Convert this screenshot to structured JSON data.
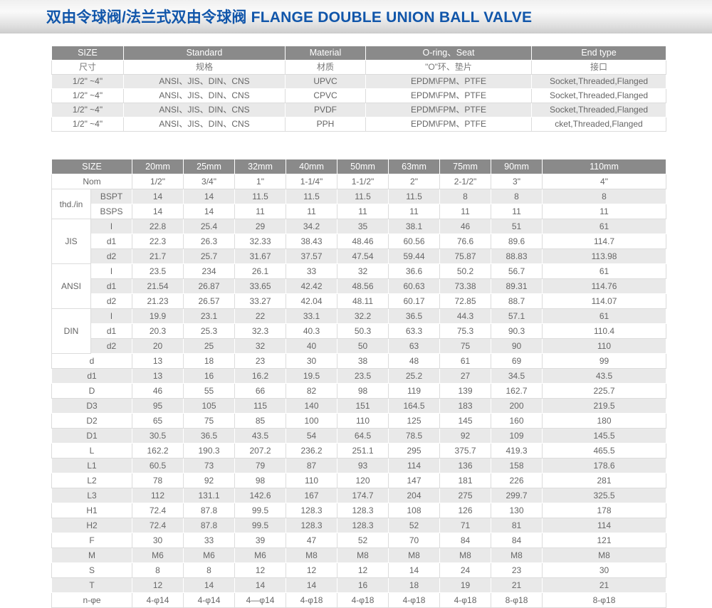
{
  "page": {
    "title": "双由令球阀/法兰式双由令球阀 FLANGE DOUBLE UNION BALL VALVE"
  },
  "spec_table": {
    "headers_en": [
      "SIZE",
      "Standard",
      "Material",
      "O-ring、Seat",
      "End type"
    ],
    "headers_zh": [
      "尺寸",
      "规格",
      "材质",
      "\"O\"环、垫片",
      "接口"
    ],
    "rows": [
      [
        "1/2\" ~4\"",
        "ANSI、JIS、DIN、CNS",
        "UPVC",
        "EPDM\\FPM、PTFE",
        "Socket,Threaded,Flanged"
      ],
      [
        "1/2\" ~4\"",
        "ANSI、JIS、DIN、CNS",
        "CPVC",
        "EPDM\\FPM、PTFE",
        "Socket,Threaded,Flanged"
      ],
      [
        "1/2\" ~4\"",
        "ANSI、JIS、DIN、CNS",
        "PVDF",
        "EPDM\\FPM、PTFE",
        "Socket,Threaded,Flanged"
      ],
      [
        "1/2\" ~4\"",
        "ANSI、JIS、DIN、CNS",
        "PPH",
        "EPDM\\FPM、PTFE",
        "cket,Threaded,Flanged"
      ]
    ]
  },
  "dim_table": {
    "size_header": "SIZE",
    "columns": [
      "20mm",
      "25mm",
      "32mm",
      "40mm",
      "50mm",
      "63mm",
      "75mm",
      "90mm",
      "110mm"
    ],
    "rows": [
      {
        "group": "",
        "label": "Nom",
        "values": [
          "1/2\"",
          "3/4\"",
          "1\"",
          "1-1/4\"",
          "1-1/2\"",
          "2\"",
          "2-1/2\"",
          "3\"",
          "4\""
        ]
      },
      {
        "group": "thd./in",
        "label": "BSPT",
        "values": [
          "14",
          "14",
          "11.5",
          "11.5",
          "11.5",
          "11.5",
          "8",
          "8",
          "8"
        ]
      },
      {
        "group": "thd./in",
        "label": "BSPS",
        "values": [
          "14",
          "14",
          "11",
          "11",
          "11",
          "11",
          "11",
          "11",
          "11"
        ]
      },
      {
        "group": "JIS",
        "label": "l",
        "values": [
          "22.8",
          "25.4",
          "29",
          "34.2",
          "35",
          "38.1",
          "46",
          "51",
          "61"
        ]
      },
      {
        "group": "JIS",
        "label": "d1",
        "values": [
          "22.3",
          "26.3",
          "32.33",
          "38.43",
          "48.46",
          "60.56",
          "76.6",
          "89.6",
          "114.7"
        ]
      },
      {
        "group": "JIS",
        "label": "d2",
        "values": [
          "21.7",
          "25.7",
          "31.67",
          "37.57",
          "47.54",
          "59.44",
          "75.87",
          "88.83",
          "113.98"
        ]
      },
      {
        "group": "ANSI",
        "label": "l",
        "values": [
          "23.5",
          "234",
          "26.1",
          "33",
          "32",
          "36.6",
          "50.2",
          "56.7",
          "61"
        ]
      },
      {
        "group": "ANSI",
        "label": "d1",
        "values": [
          "21.54",
          "26.87",
          "33.65",
          "42.42",
          "48.56",
          "60.63",
          "73.38",
          "89.31",
          "114.76"
        ]
      },
      {
        "group": "ANSI",
        "label": "d2",
        "values": [
          "21.23",
          "26.57",
          "33.27",
          "42.04",
          "48.11",
          "60.17",
          "72.85",
          "88.7",
          "114.07"
        ]
      },
      {
        "group": "DIN",
        "label": "l",
        "values": [
          "19.9",
          "23.1",
          "22",
          "33.1",
          "32.2",
          "36.5",
          "44.3",
          "57.1",
          "61"
        ]
      },
      {
        "group": "DIN",
        "label": "d1",
        "values": [
          "20.3",
          "25.3",
          "32.3",
          "40.3",
          "50.3",
          "63.3",
          "75.3",
          "90.3",
          "110.4"
        ]
      },
      {
        "group": "DIN",
        "label": "d2",
        "values": [
          "20",
          "25",
          "32",
          "40",
          "50",
          "63",
          "75",
          "90",
          "110"
        ]
      },
      {
        "group": "",
        "label": "d",
        "values": [
          "13",
          "18",
          "23",
          "30",
          "38",
          "48",
          "61",
          "69",
          "99"
        ]
      },
      {
        "group": "",
        "label": "d1",
        "values": [
          "13",
          "16",
          "16.2",
          "19.5",
          "23.5",
          "25.2",
          "27",
          "34.5",
          "43.5"
        ]
      },
      {
        "group": "",
        "label": "D",
        "values": [
          "46",
          "55",
          "66",
          "82",
          "98",
          "119",
          "139",
          "162.7",
          "225.7"
        ]
      },
      {
        "group": "",
        "label": "D3",
        "values": [
          "95",
          "105",
          "115",
          "140",
          "151",
          "164.5",
          "183",
          "200",
          "219.5"
        ]
      },
      {
        "group": "",
        "label": "D2",
        "values": [
          "65",
          "75",
          "85",
          "100",
          "110",
          "125",
          "145",
          "160",
          "180"
        ]
      },
      {
        "group": "",
        "label": "D1",
        "values": [
          "30.5",
          "36.5",
          "43.5",
          "54",
          "64.5",
          "78.5",
          "92",
          "109",
          "145.5"
        ]
      },
      {
        "group": "",
        "label": "L",
        "values": [
          "162.2",
          "190.3",
          "207.2",
          "236.2",
          "251.1",
          "295",
          "375.7",
          "419.3",
          "465.5"
        ]
      },
      {
        "group": "",
        "label": "L1",
        "values": [
          "60.5",
          "73",
          "79",
          "87",
          "93",
          "114",
          "136",
          "158",
          "178.6"
        ]
      },
      {
        "group": "",
        "label": "L2",
        "values": [
          "78",
          "92",
          "98",
          "110",
          "120",
          "147",
          "181",
          "226",
          "281"
        ]
      },
      {
        "group": "",
        "label": "L3",
        "values": [
          "112",
          "131.1",
          "142.6",
          "167",
          "174.7",
          "204",
          "275",
          "299.7",
          "325.5"
        ]
      },
      {
        "group": "",
        "label": "H1",
        "values": [
          "72.4",
          "87.8",
          "99.5",
          "128.3",
          "128.3",
          "108",
          "126",
          "130",
          "178"
        ]
      },
      {
        "group": "",
        "label": "H2",
        "values": [
          "72.4",
          "87.8",
          "99.5",
          "128.3",
          "128.3",
          "52",
          "71",
          "81",
          "114"
        ]
      },
      {
        "group": "",
        "label": "F",
        "values": [
          "30",
          "33",
          "39",
          "47",
          "52",
          "70",
          "84",
          "84",
          "121"
        ]
      },
      {
        "group": "",
        "label": "M",
        "values": [
          "M6",
          "M6",
          "M6",
          "M8",
          "M8",
          "M8",
          "M8",
          "M8",
          "M8"
        ]
      },
      {
        "group": "",
        "label": "S",
        "values": [
          "8",
          "8",
          "12",
          "12",
          "12",
          "14",
          "24",
          "23",
          "30"
        ]
      },
      {
        "group": "",
        "label": "T",
        "values": [
          "12",
          "14",
          "14",
          "14",
          "16",
          "18",
          "19",
          "21",
          "21"
        ]
      },
      {
        "group": "",
        "label": "n-φe",
        "values": [
          "4-φ14",
          "4-φ14",
          "4—φ14",
          "4-φ18",
          "4-φ18",
          "4-φ18",
          "4-φ18",
          "8-φ18",
          "8-φ18"
        ]
      }
    ]
  },
  "colors": {
    "title_blue": "#1156aa",
    "header_gray": "#8a8a8a",
    "stripe_gray": "#e9e9e9"
  }
}
